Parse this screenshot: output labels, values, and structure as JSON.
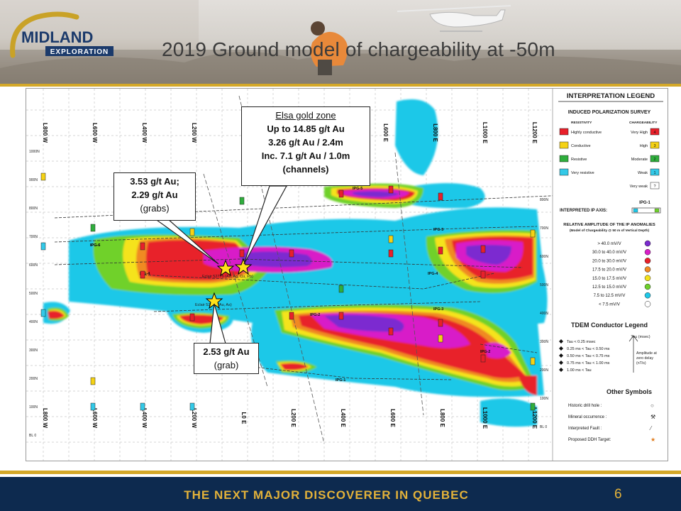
{
  "company": {
    "logo_line1": "MIDLAND",
    "logo_line2": "EXPLORATION"
  },
  "slide": {
    "title": "2019 Ground model of chargeability at -50m",
    "footer": "THE NEXT MAJOR DISCOVERER IN QUEBEC",
    "page_number": "6"
  },
  "callouts": {
    "elsa": {
      "title": "Elsa gold zone",
      "line1": "Up to 14.85 g/t Au",
      "line2": "3.26 g/t Au / 2.4m",
      "line3": "Inc. 7.1 g/t Au / 1.0m",
      "line4": "(channels)"
    },
    "grab_north": {
      "line1": "3.53 g/t Au;",
      "line2": "2.29 g/t Au",
      "line3": "(grabs)"
    },
    "grab_south": {
      "line1": "2.53 g/t Au",
      "line2": "(grab)"
    }
  },
  "map": {
    "lines_top": [
      "L800 W",
      "L600 W",
      "L400 W",
      "L200 W",
      "L600 E",
      "L800 E",
      "L1000 E",
      "L1200 E"
    ],
    "lines_bottom": [
      "L800 W",
      "L600 W",
      "L400 W",
      "L200 W",
      "L0 E",
      "L200 E",
      "L400 E",
      "L600 E",
      "L800 E",
      "L1000 E",
      "L1200 E"
    ],
    "northings_left": [
      "1000N",
      "900N",
      "800N",
      "700N",
      "600N",
      "500N",
      "400N",
      "300N",
      "200N",
      "100N",
      "BL 0"
    ],
    "northings_right": [
      "800N",
      "700N",
      "600N",
      "500N",
      "400N",
      "300N",
      "200N",
      "100N",
      "BL 0"
    ],
    "anomaly_labels": [
      "IPG-6",
      "IPG-5",
      "IPG-4",
      "IPG-3",
      "IPG-2",
      "IPG-1",
      "IPG-4",
      "IPG-6",
      "IPG-5",
      "IPG-2"
    ],
    "showing_labels": [
      "Eclair 52775 (Au, Ag, Cu, Pb)",
      "Eclair 52775 (Au, As)"
    ]
  },
  "legend": {
    "title": "INTERPRETATION LEGEND",
    "survey": "INDUCED POLARIZATION SURVEY",
    "col_resistivity": "RESISTIVITY",
    "col_chargeability": "CHARGEABILITY",
    "resistivity": [
      {
        "label": "Highly conductive",
        "color": "#e8202a"
      },
      {
        "label": "Conductive",
        "color": "#f5d214"
      },
      {
        "label": "Resistive",
        "color": "#2fae3c"
      },
      {
        "label": "Very resistive",
        "color": "#33c9e8"
      }
    ],
    "chargeability": [
      {
        "label": "Very High",
        "value": "4",
        "color": "#e8202a"
      },
      {
        "label": "High",
        "value": "3",
        "color": "#f5d214"
      },
      {
        "label": "Moderate",
        "value": "2",
        "color": "#2fae3c"
      },
      {
        "label": "Weak",
        "value": "1",
        "color": "#33c9e8"
      },
      {
        "label": "Very weak",
        "value": "?",
        "color": "#ffffff"
      }
    ],
    "axis_label": "INTERPRETED IP AXIS:",
    "axis_name": "IPG-1",
    "amplitude_title": "RELATIVE AMPLITUDE OF THE IP ANOMALIES",
    "amplitude_sub": "(Model of Chargeability @ 50 m of Vertical Depth)",
    "scale": [
      {
        "label": "> 40.0 mV/V",
        "color": "#7b2bd0"
      },
      {
        "label": "30.0 to 40.0 mV/V",
        "color": "#d81fc8"
      },
      {
        "label": "20.0 to 30.0 mV/V",
        "color": "#e8202a"
      },
      {
        "label": "17.5 to 20.0 mV/V",
        "color": "#f08a24"
      },
      {
        "label": "15.0 to 17.5 mV/V",
        "color": "#f5e31a"
      },
      {
        "label": "12.5 to 15.0 mV/V",
        "color": "#6fd12c"
      },
      {
        "label": "7.5 to 12.5 mV/V",
        "color": "#1fc8e8"
      },
      {
        "label": "< 7.5 mV/V",
        "color": "#ffffff"
      }
    ],
    "tdem_title": "TDEM Conductor Legend",
    "tau_header": "Tau (msec)",
    "tdem": [
      "Tau < 0.25 msec",
      "0.25 ms < Tau < 0.50 ms",
      "0.50 ms < Tau < 0.75 ms",
      "0.75 ms < Tau < 1.00 ms",
      "1.00 ms < Tau"
    ],
    "amplitude_note": [
      "Amplitude at",
      "zero delay",
      "(nT/s)"
    ],
    "other_title": "Other Symbols",
    "other": [
      "Historic drill hole :",
      "Mineral occurrence :",
      "Interpreted Fault :",
      "Proposed DDH Target:"
    ]
  }
}
